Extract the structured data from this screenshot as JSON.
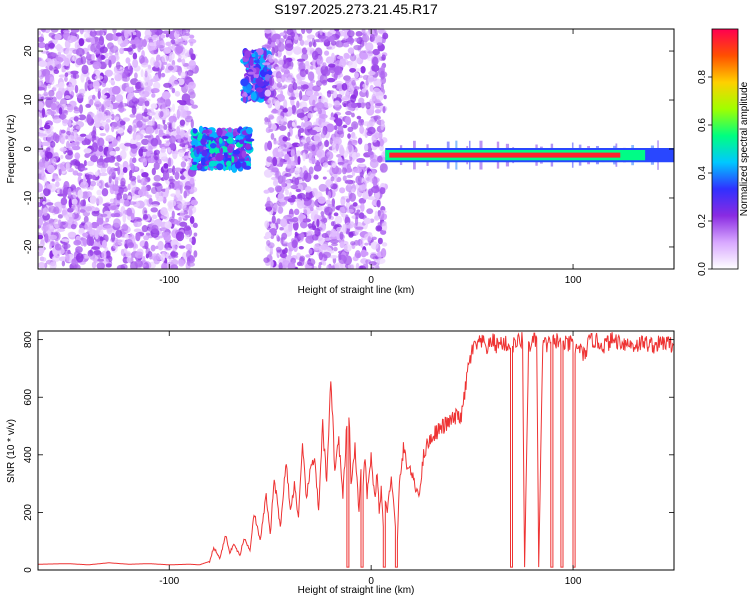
{
  "title": "S197.2025.273.21.45.R17",
  "chart_data": [
    {
      "type": "heatmap",
      "xlabel": "Height of straight line (km)",
      "ylabel": "Frequency (Hz)",
      "xlim": [
        -165,
        150
      ],
      "ylim": [
        -24.5,
        24.5
      ],
      "xticks": [
        -100,
        0,
        100
      ],
      "yticks": [
        -20,
        -10,
        0,
        10,
        20
      ],
      "colorbar": {
        "label": "Normalized spectral amplitude",
        "range": [
          0,
          1
        ],
        "ticks": [
          0.0,
          0.2,
          0.4,
          0.6,
          0.8
        ],
        "colors": [
          "#ffffff",
          "#d8a8ff",
          "#8a2be2",
          "#3030ff",
          "#00c8ff",
          "#00ff80",
          "#a0ff00",
          "#ffd000",
          "#ff5000",
          "#ff0050"
        ]
      },
      "features": [
        {
          "name": "noise",
          "x": [
            -165,
            -87
          ],
          "y": [
            -24.5,
            24.5
          ],
          "amplitude": 0.15
        },
        {
          "name": "cluster",
          "x": [
            -88,
            -60
          ],
          "y": [
            -4,
            4
          ],
          "amplitude": 0.3
        },
        {
          "name": "cluster",
          "x": [
            -63,
            -50
          ],
          "y": [
            10,
            20
          ],
          "amplitude": 0.25
        },
        {
          "name": "noise",
          "x": [
            -52,
            7
          ],
          "y": [
            -24.5,
            24.5
          ],
          "amplitude": 0.15
        },
        {
          "name": "signal",
          "x": [
            7,
            150
          ],
          "y": [
            -2.5,
            0
          ],
          "amplitude": 0.95
        }
      ]
    },
    {
      "type": "line",
      "xlabel": "Height of straight line (km)",
      "ylabel": "SNR (10 * v/v)",
      "xlim": [
        -165,
        150
      ],
      "ylim": [
        0,
        830
      ],
      "xticks": [
        -100,
        0,
        100
      ],
      "yticks": [
        0,
        200,
        400,
        600,
        800
      ],
      "series": [
        {
          "color": "#ee3333",
          "x": [
            -165,
            -150,
            -140,
            -130,
            -120,
            -110,
            -100,
            -90,
            -85,
            -80,
            -78,
            -75,
            -72,
            -70,
            -68,
            -65,
            -63,
            -60,
            -58,
            -55,
            -52,
            -50,
            -48,
            -45,
            -42,
            -40,
            -38,
            -36,
            -34,
            -32,
            -30,
            -28,
            -26,
            -24,
            -22,
            -20,
            -18,
            -16,
            -14,
            -12,
            -12,
            -11,
            -11,
            -10,
            -8,
            -6,
            -5,
            -5,
            -4,
            -4,
            -3,
            -2,
            -1,
            0,
            1,
            2,
            3,
            4,
            5,
            6,
            6,
            7,
            7,
            8,
            10,
            12,
            12,
            13,
            13,
            14,
            16,
            18,
            20,
            22,
            24,
            26,
            28,
            30,
            32,
            34,
            36,
            38,
            40,
            42,
            45,
            48,
            50,
            52,
            55,
            58,
            60,
            62,
            65,
            68,
            69,
            69,
            70,
            70,
            72,
            75,
            75,
            76,
            76,
            78,
            80,
            82,
            82,
            83,
            83,
            85,
            87,
            89,
            89,
            90,
            90,
            92,
            93,
            94,
            94,
            95,
            95,
            97,
            100,
            100,
            101,
            101,
            103,
            105,
            108,
            110,
            115,
            120,
            125,
            130,
            135,
            140,
            145,
            150
          ],
          "values": [
            20,
            22,
            18,
            25,
            20,
            22,
            18,
            20,
            18,
            30,
            80,
            40,
            120,
            60,
            90,
            50,
            110,
            70,
            200,
            100,
            260,
            120,
            320,
            150,
            380,
            200,
            300,
            180,
            420,
            250,
            350,
            400,
            200,
            500,
            300,
            680,
            350,
            450,
            250,
            500,
            10,
            10,
            550,
            300,
            420,
            200,
            350,
            10,
            10,
            300,
            380,
            250,
            350,
            400,
            300,
            250,
            350,
            200,
            280,
            150,
            10,
            10,
            250,
            200,
            330,
            150,
            10,
            10,
            100,
            300,
            420,
            360,
            340,
            280,
            270,
            400,
            440,
            460,
            480,
            490,
            500,
            510,
            520,
            530,
            540,
            700,
            760,
            780,
            790,
            770,
            800,
            780,
            790,
            780,
            770,
            10,
            10,
            780,
            790,
            800,
            790,
            10,
            10,
            780,
            790,
            800,
            790,
            10,
            10,
            790,
            780,
            790,
            10,
            10,
            790,
            800,
            790,
            780,
            10,
            10,
            790,
            780,
            790,
            10,
            10,
            760,
            780,
            740,
            790,
            800,
            780,
            800,
            790,
            780,
            790,
            780,
            790,
            780
          ]
        }
      ]
    }
  ]
}
